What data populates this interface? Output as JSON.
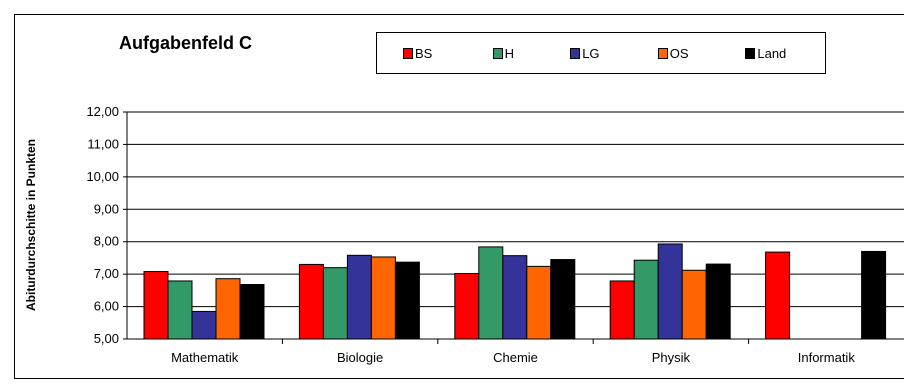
{
  "chart_data": {
    "type": "bar",
    "title": "Aufgabenfeld C",
    "ylabel": "Abiturdurchschitte in Punkten",
    "xlabel": "",
    "ylim": [
      5,
      12
    ],
    "yticks": [
      "5,00",
      "6,00",
      "7,00",
      "8,00",
      "9,00",
      "10,00",
      "11,00",
      "12,00"
    ],
    "grid": true,
    "legend_position": "top",
    "categories": [
      "Mathematik",
      "Biologie",
      "Chemie",
      "Physik",
      "Informatik"
    ],
    "series": [
      {
        "name": "BS",
        "color": "#ff0000",
        "values": [
          7.08,
          7.3,
          7.02,
          6.79,
          7.68
        ]
      },
      {
        "name": "H",
        "color": "#339966",
        "values": [
          6.79,
          7.2,
          7.84,
          7.43,
          null
        ]
      },
      {
        "name": "LG",
        "color": "#333399",
        "values": [
          5.85,
          7.58,
          7.57,
          7.93,
          null
        ]
      },
      {
        "name": "OS",
        "color": "#ff6600",
        "values": [
          6.86,
          7.53,
          7.24,
          7.12,
          null
        ]
      },
      {
        "name": "Land",
        "color": "#000000",
        "values": [
          6.68,
          7.37,
          7.45,
          7.31,
          7.7
        ]
      }
    ]
  }
}
